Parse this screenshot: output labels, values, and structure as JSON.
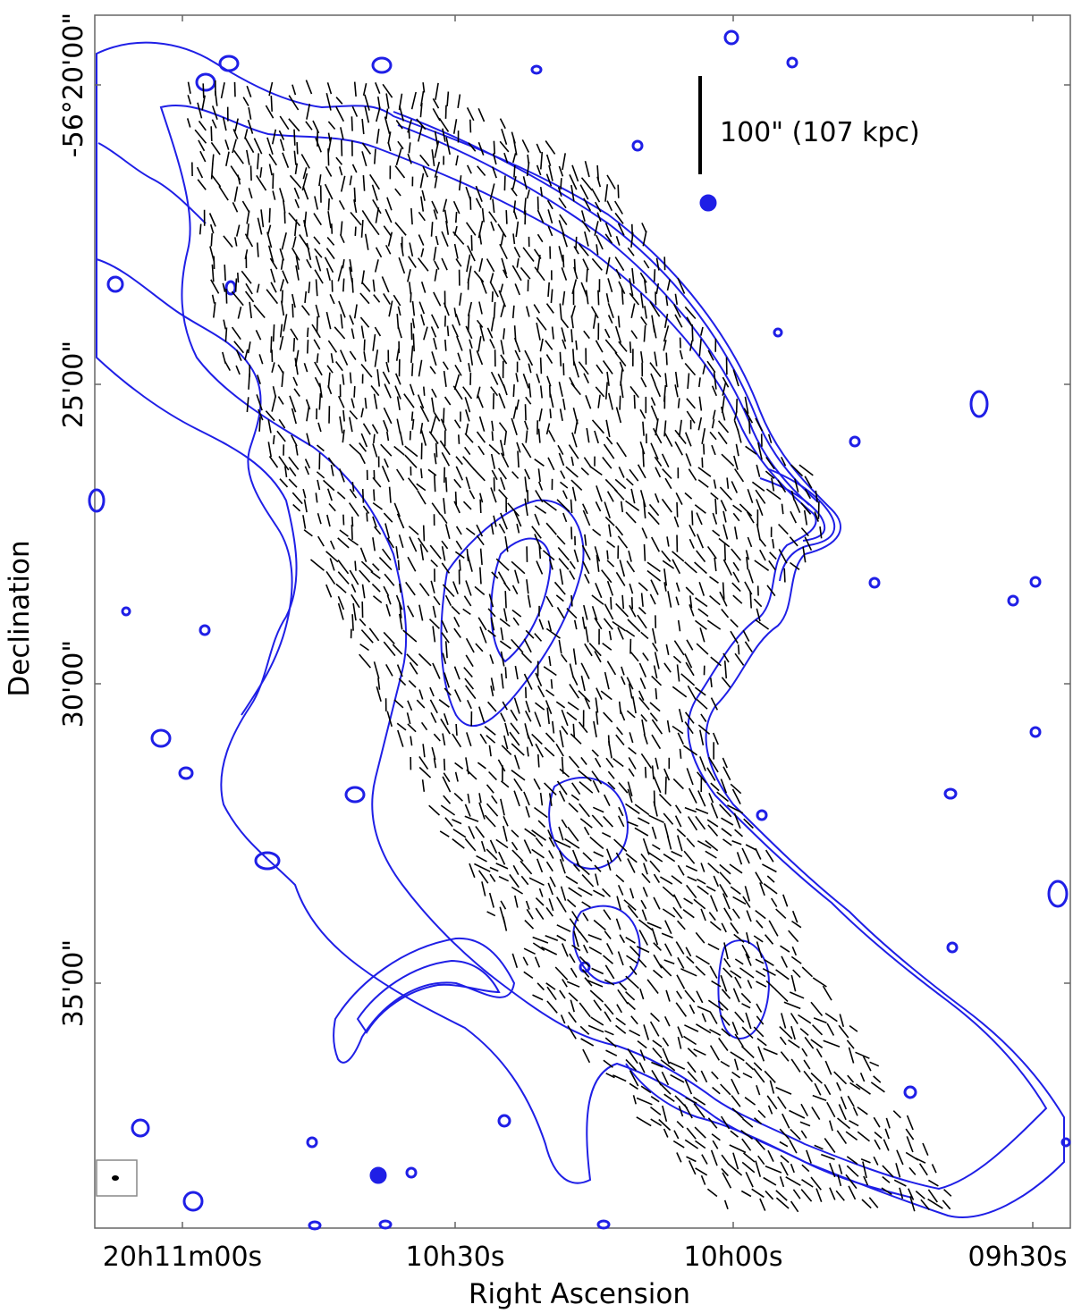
{
  "figure": {
    "type": "radio polarization map",
    "axes": {
      "xlabel": "Right Ascension",
      "ylabel": "Declination",
      "x_ticks": [
        {
          "label": "20h11m00s"
        },
        {
          "label": "10h30s"
        },
        {
          "label": "10h00s"
        },
        {
          "label": "09h30s"
        }
      ],
      "y_ticks": [
        {
          "label": "-56°20'00\""
        },
        {
          "label": "25'00\""
        },
        {
          "label": "30'00\""
        },
        {
          "label": "35'00\""
        }
      ]
    },
    "scale_bar": {
      "label": "100\"  (107 kpc)"
    },
    "colors": {
      "contour": "#1f1fe6",
      "vectors": "#000000",
      "frame": "#666666",
      "beam_box": "#888888"
    }
  }
}
